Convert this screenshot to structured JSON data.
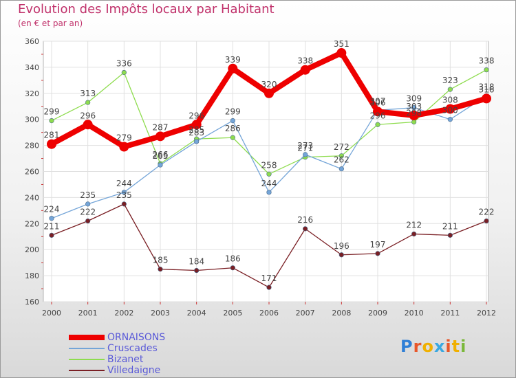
{
  "header": {
    "title": "Evolution des Impôts locaux par Habitant",
    "subtitle": "(en € et par an)"
  },
  "logo": {
    "letters": [
      "P",
      "r",
      "o",
      "x",
      "i",
      "t",
      "i"
    ],
    "colors": [
      "#2f7fd6",
      "#e8572a",
      "#f0b000",
      "#3aa8e0",
      "#e8572a",
      "#f0b000",
      "#7ab83a"
    ]
  },
  "chart_data": {
    "type": "line",
    "title": "Evolution des Impôts locaux par Habitant",
    "subtitle": "(en € et par an)",
    "xlabel": "",
    "ylabel": "",
    "x": [
      "2000",
      "2001",
      "2002",
      "2003",
      "2004",
      "2005",
      "2006",
      "2007",
      "2008",
      "2009",
      "2010",
      "2011",
      "2012"
    ],
    "ylim": [
      160,
      360
    ],
    "yticks": [
      "160",
      "180",
      "200",
      "220",
      "240",
      "260",
      "280",
      "300",
      "320",
      "340",
      "360"
    ],
    "grid": true,
    "legend_position": "bottom-left",
    "series": [
      {
        "name": "Villedaigne",
        "color": "#7a1f24",
        "values": [
          211,
          222,
          235,
          185,
          184,
          186,
          171,
          216,
          196,
          197,
          212,
          211,
          222
        ],
        "labels": [
          "211",
          "222",
          "235",
          "185",
          "184",
          "186",
          "171",
          "216",
          "196",
          "197",
          "212",
          "211",
          "222"
        ]
      },
      {
        "name": "Bizanet",
        "color": "#8edc4e",
        "values": [
          299,
          313,
          336,
          266,
          285,
          286,
          258,
          271,
          272,
          296,
          298,
          323,
          338
        ],
        "labels": [
          "299",
          "313",
          "336",
          "266",
          "285",
          "286",
          "258",
          "271",
          "272",
          "296",
          "298",
          "323",
          "338"
        ]
      },
      {
        "name": "Cruscades",
        "color": "#74a5d8",
        "values": [
          224,
          235,
          244,
          265,
          283,
          299,
          244,
          273,
          262,
          307,
          309,
          300,
          318
        ],
        "labels": [
          "224",
          "235",
          "244",
          "265",
          "283",
          "299",
          "244",
          "273",
          "262",
          "307",
          "309",
          "300",
          "318"
        ]
      },
      {
        "name": "ORNAISONS",
        "color": "#ee0000",
        "values": [
          281,
          296,
          279,
          287,
          296,
          339,
          320,
          338,
          351,
          306,
          303,
          308,
          316
        ],
        "labels": [
          "281",
          "296",
          "279",
          "287",
          "296",
          "339",
          "320",
          "338",
          "351",
          "306",
          "303",
          "308",
          "316"
        ]
      }
    ],
    "legend": [
      "ORNAISONS",
      "Cruscades",
      "Bizanet",
      "Villedaigne"
    ]
  }
}
